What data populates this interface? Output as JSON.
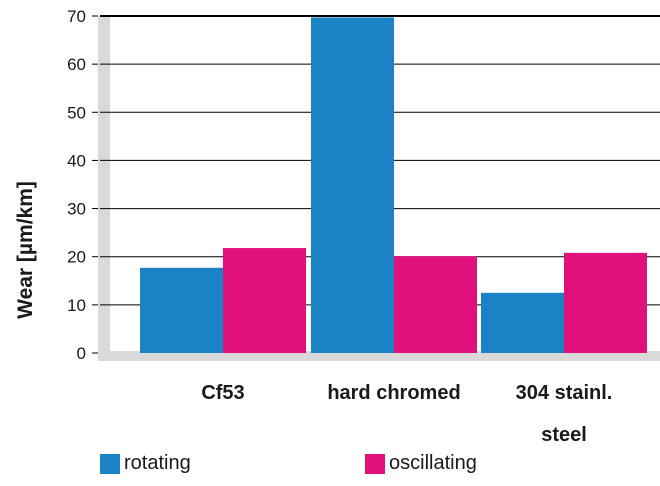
{
  "chart_data": {
    "type": "bar",
    "title": "",
    "xlabel": "",
    "ylabel": "Wear [µm/km]",
    "ylim": [
      0,
      70
    ],
    "yticks": [
      0,
      10,
      20,
      30,
      40,
      50,
      60,
      70
    ],
    "categories": [
      [
        "Cf53"
      ],
      [
        "hard chromed"
      ],
      [
        "304 stainl.",
        "steel"
      ]
    ],
    "series": [
      {
        "name": "rotating",
        "color": "#1b82c6",
        "values": [
          17.7,
          69.7,
          12.5
        ]
      },
      {
        "name": "oscillating",
        "color": "#e0117c",
        "values": [
          21.8,
          20.1,
          20.8
        ]
      }
    ],
    "grid": true,
    "legend": "bottom"
  }
}
